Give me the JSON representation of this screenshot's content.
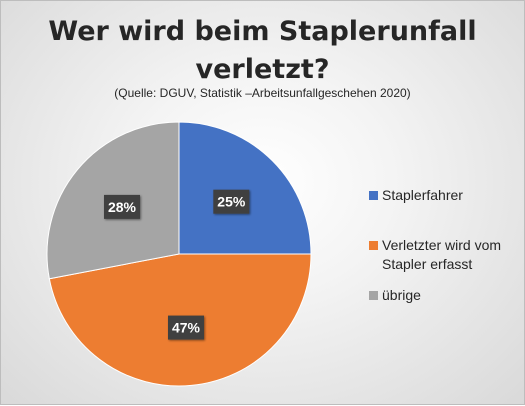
{
  "chart_data": {
    "type": "pie",
    "title_lines": [
      "Wer wird beim Staplerunfall",
      "verletzt?"
    ],
    "subtitle": "(Quelle: DGUV, Statistik –Arbeitsunfallgeschehen 2020)",
    "slices": [
      {
        "name": "Staplerfahrer",
        "legend_lines": [
          "Staplerfahrer"
        ],
        "value": 25,
        "label": "25%",
        "color": "#4472C4"
      },
      {
        "name": "Verletzter wird vom Stapler erfasst",
        "legend_lines": [
          "Verletzter wird vom",
          "Stapler erfasst"
        ],
        "value": 47,
        "label": "47%",
        "color": "#ED7D31"
      },
      {
        "name": "übrige",
        "legend_lines": [
          "übrige"
        ],
        "value": 28,
        "label": "28%",
        "color": "#A5A5A5"
      }
    ],
    "legend_position": "right"
  }
}
